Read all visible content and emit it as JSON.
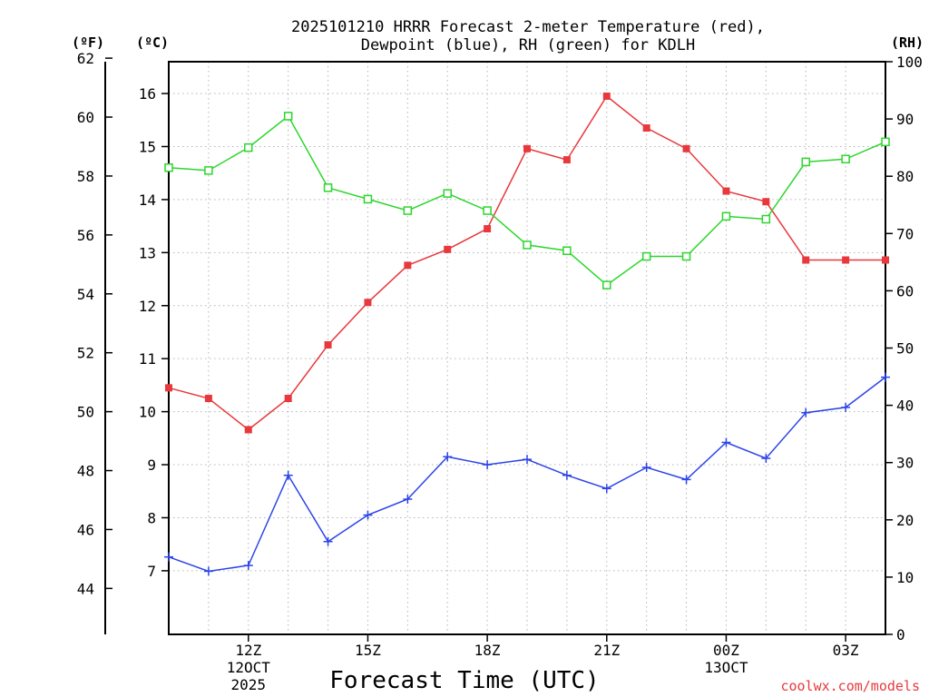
{
  "chart_data": {
    "type": "line",
    "title_lines": [
      "2025101210 HRRR Forecast 2-meter Temperature (red),",
      "Dewpoint (blue), RH (green) for KDLH"
    ],
    "xlabel": "Forecast Time (UTC)",
    "credit": "coolwx.com/models",
    "units": {
      "fahrenheit": "(ºF)",
      "celsius": "(ºC)",
      "rh": "(RH)"
    },
    "x_hours": [
      10,
      11,
      12,
      13,
      14,
      15,
      16,
      17,
      18,
      19,
      20,
      21,
      22,
      23,
      24,
      25,
      26,
      27,
      28
    ],
    "x_ticks": [
      {
        "hour": 12,
        "lines": [
          "12Z",
          "12OCT",
          "2025"
        ]
      },
      {
        "hour": 15,
        "lines": [
          "15Z"
        ]
      },
      {
        "hour": 18,
        "lines": [
          "18Z"
        ]
      },
      {
        "hour": 21,
        "lines": [
          "21Z"
        ]
      },
      {
        "hour": 24,
        "lines": [
          "00Z",
          "13OCT"
        ]
      },
      {
        "hour": 27,
        "lines": [
          "03Z"
        ]
      }
    ],
    "xlim": [
      10,
      28
    ],
    "celsius_axis": {
      "ylim": [
        5.8,
        16.6
      ],
      "ticks": [
        "7",
        "8",
        "9",
        "10",
        "11",
        "12",
        "13",
        "14",
        "15",
        "16"
      ]
    },
    "fahrenheit_axis": {
      "ylim": [
        42.44,
        61.88
      ],
      "ticks": [
        "44",
        "46",
        "48",
        "50",
        "52",
        "54",
        "56",
        "58",
        "60",
        "62"
      ]
    },
    "rh_axis": {
      "ylim": [
        0,
        100
      ],
      "ticks": [
        "0",
        "10",
        "20",
        "30",
        "40",
        "50",
        "60",
        "70",
        "80",
        "90",
        "100"
      ]
    },
    "grid": true,
    "series": [
      {
        "name": "Temperature",
        "axis": "celsius",
        "color": "#e8383c",
        "marker": "square-filled",
        "values": [
          10.45,
          10.25,
          9.66,
          10.25,
          11.26,
          12.06,
          12.76,
          13.06,
          13.45,
          14.96,
          14.75,
          15.95,
          15.35,
          14.96,
          14.16,
          13.96,
          12.86,
          12.86,
          12.86
        ]
      },
      {
        "name": "Dewpoint",
        "axis": "celsius",
        "color": "#2c44e8",
        "marker": "plus",
        "values": [
          7.26,
          6.99,
          7.1,
          8.8,
          7.55,
          8.05,
          8.35,
          9.15,
          9.0,
          9.1,
          8.8,
          8.55,
          8.95,
          8.72,
          9.42,
          9.12,
          9.98,
          10.08,
          10.65
        ]
      },
      {
        "name": "RH",
        "axis": "rh",
        "color": "#2cd62c",
        "marker": "square-open",
        "values": [
          81.5,
          81.0,
          85.0,
          90.5,
          78.0,
          76.0,
          74.0,
          77.0,
          74.0,
          68.0,
          67.0,
          61.0,
          66.0,
          66.0,
          73.0,
          72.5,
          82.5,
          83.0,
          86.0
        ]
      }
    ]
  }
}
